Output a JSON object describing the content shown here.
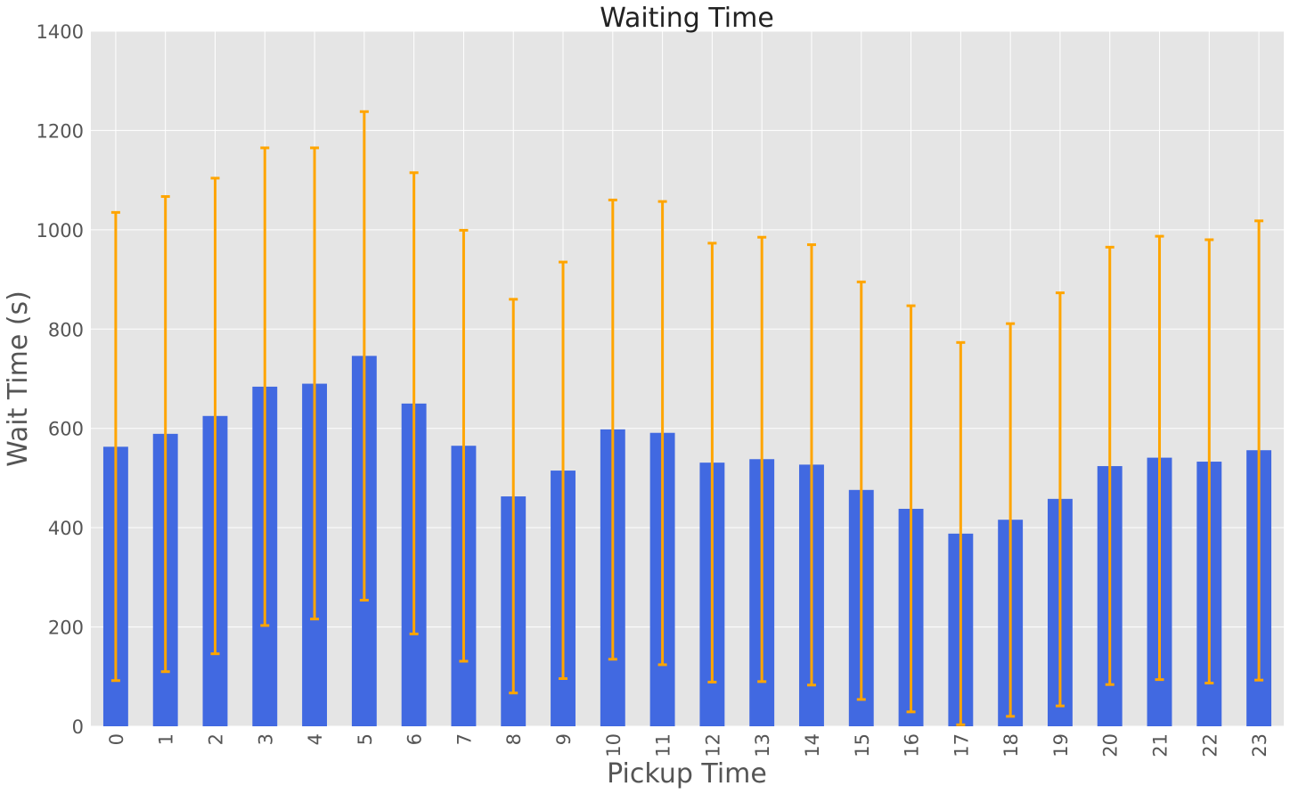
{
  "chart_data": {
    "type": "bar",
    "title": "Waiting Time",
    "xlabel": "Pickup Time",
    "ylabel": "Wait Time (s)",
    "ylim": [
      0,
      1400
    ],
    "yticks": [
      0,
      200,
      400,
      600,
      800,
      1000,
      1200,
      1400
    ],
    "categories": [
      "0",
      "1",
      "2",
      "3",
      "4",
      "5",
      "6",
      "7",
      "8",
      "9",
      "10",
      "11",
      "12",
      "13",
      "14",
      "15",
      "16",
      "17",
      "18",
      "19",
      "20",
      "21",
      "22",
      "23"
    ],
    "values": [
      563,
      589,
      625,
      684,
      690,
      746,
      650,
      565,
      463,
      515,
      598,
      591,
      531,
      538,
      527,
      476,
      438,
      388,
      416,
      458,
      524,
      541,
      533,
      556
    ],
    "error_low": [
      92,
      110,
      146,
      203,
      216,
      254,
      186,
      131,
      67,
      96,
      135,
      124,
      89,
      90,
      83,
      54,
      29,
      3,
      20,
      41,
      84,
      94,
      87,
      93
    ],
    "error_high": [
      1035,
      1067,
      1104,
      1165,
      1165,
      1238,
      1115,
      999,
      860,
      935,
      1060,
      1057,
      973,
      985,
      970,
      895,
      847,
      773,
      811,
      873,
      965,
      987,
      980,
      1018
    ],
    "grid": true,
    "colors": {
      "bar": "#4169e1",
      "error": "#ffa500",
      "plot_background": "#e5e5e5",
      "grid": "#ffffff"
    }
  }
}
